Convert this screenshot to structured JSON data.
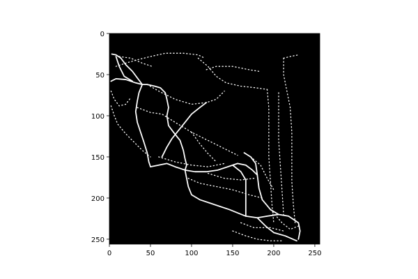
{
  "image_panel": {
    "xlim": [
      0,
      256
    ],
    "ylim": [
      256,
      0
    ],
    "x_ticks": [
      0,
      50,
      100,
      150,
      200,
      250
    ],
    "y_ticks": [
      0,
      50,
      100,
      150,
      200,
      250
    ],
    "background_color": "#000000",
    "foreground_color": "#ffffff"
  }
}
